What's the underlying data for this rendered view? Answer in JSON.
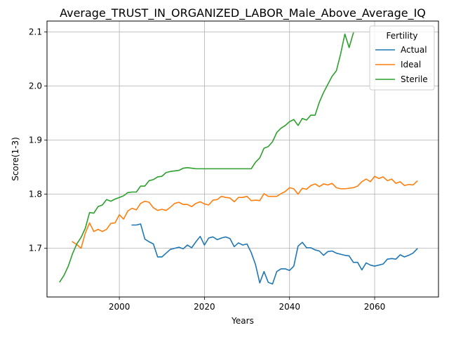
{
  "chart_data": {
    "type": "line",
    "title": "Average_TRUST_IN_ORGANIZED_LABOR_Male_Above_Average_IQ",
    "xlabel": "Years",
    "ylabel": "Score(1-3)",
    "xlim": [
      1983,
      2075
    ],
    "ylim": [
      1.61,
      2.12
    ],
    "xticks": [
      2000,
      2020,
      2040,
      2060
    ],
    "yticks": [
      1.7,
      1.8,
      1.9,
      2.0,
      2.1
    ],
    "grid": true,
    "legend": {
      "title": "Fertility",
      "placement": "top-right"
    },
    "series": [
      {
        "name": "Actual",
        "color": "#1f77b4",
        "x": [
          2003,
          2004,
          2005,
          2006,
          2007,
          2008,
          2009,
          2010,
          2011,
          2012,
          2013,
          2014,
          2015,
          2016,
          2017,
          2018,
          2019,
          2020,
          2021,
          2022,
          2023,
          2024,
          2025,
          2026,
          2027,
          2028,
          2029,
          2030,
          2031,
          2032,
          2033,
          2034,
          2035,
          2036,
          2037,
          2038,
          2039,
          2040,
          2041,
          2042,
          2043,
          2044,
          2045,
          2046,
          2047,
          2048,
          2049,
          2050,
          2051,
          2052,
          2053,
          2054,
          2055,
          2056,
          2057,
          2058,
          2059,
          2060,
          2061,
          2062,
          2063,
          2064,
          2065,
          2066,
          2067,
          2068,
          2069,
          2070
        ],
        "values": [
          1.743,
          1.743,
          1.745,
          1.717,
          1.712,
          1.708,
          1.684,
          1.684,
          1.691,
          1.698,
          1.7,
          1.702,
          1.699,
          1.706,
          1.701,
          1.712,
          1.722,
          1.706,
          1.719,
          1.721,
          1.716,
          1.719,
          1.721,
          1.718,
          1.703,
          1.71,
          1.706,
          1.708,
          1.692,
          1.67,
          1.636,
          1.657,
          1.637,
          1.634,
          1.657,
          1.662,
          1.662,
          1.659,
          1.667,
          1.704,
          1.711,
          1.701,
          1.701,
          1.697,
          1.695,
          1.687,
          1.694,
          1.695,
          1.691,
          1.689,
          1.687,
          1.686,
          1.674,
          1.674,
          1.66,
          1.673,
          1.669,
          1.667,
          1.669,
          1.671,
          1.68,
          1.681,
          1.68,
          1.688,
          1.684,
          1.687,
          1.691,
          1.699
        ]
      },
      {
        "name": "Ideal",
        "color": "#ff7f0e",
        "x": [
          1989,
          1990,
          1991,
          1992,
          1993,
          1994,
          1995,
          1996,
          1997,
          1998,
          1999,
          2000,
          2001,
          2002,
          2003,
          2004,
          2005,
          2006,
          2007,
          2008,
          2009,
          2010,
          2011,
          2012,
          2013,
          2014,
          2015,
          2016,
          2017,
          2018,
          2019,
          2020,
          2021,
          2022,
          2023,
          2024,
          2025,
          2026,
          2027,
          2028,
          2029,
          2030,
          2031,
          2032,
          2033,
          2034,
          2035,
          2036,
          2037,
          2038,
          2039,
          2040,
          2041,
          2042,
          2043,
          2044,
          2045,
          2046,
          2047,
          2048,
          2049,
          2050,
          2051,
          2052,
          2053,
          2054,
          2055,
          2056,
          2057,
          2058,
          2059,
          2060,
          2061,
          2062,
          2063,
          2064,
          2065,
          2066,
          2067,
          2068,
          2069,
          2070
        ],
        "values": [
          1.712,
          1.707,
          1.7,
          1.728,
          1.747,
          1.731,
          1.735,
          1.731,
          1.735,
          1.746,
          1.747,
          1.762,
          1.754,
          1.769,
          1.774,
          1.771,
          1.783,
          1.787,
          1.785,
          1.775,
          1.77,
          1.772,
          1.77,
          1.776,
          1.783,
          1.785,
          1.781,
          1.781,
          1.777,
          1.783,
          1.786,
          1.782,
          1.78,
          1.789,
          1.79,
          1.796,
          1.794,
          1.793,
          1.786,
          1.794,
          1.794,
          1.796,
          1.788,
          1.789,
          1.788,
          1.801,
          1.796,
          1.796,
          1.796,
          1.801,
          1.805,
          1.812,
          1.81,
          1.8,
          1.811,
          1.809,
          1.816,
          1.819,
          1.814,
          1.819,
          1.817,
          1.82,
          1.812,
          1.81,
          1.81,
          1.811,
          1.812,
          1.815,
          1.823,
          1.828,
          1.823,
          1.833,
          1.829,
          1.832,
          1.825,
          1.828,
          1.82,
          1.823,
          1.816,
          1.818,
          1.817,
          1.824
        ]
      },
      {
        "name": "Sterile",
        "color": "#2ca02c",
        "x": [
          1986,
          1987,
          1988,
          1989,
          1990,
          1991,
          1992,
          1993,
          1994,
          1995,
          1996,
          1997,
          1998,
          1999,
          2000,
          2001,
          2002,
          2003,
          2004,
          2005,
          2006,
          2007,
          2008,
          2009,
          2010,
          2011,
          2012,
          2013,
          2014,
          2015,
          2016,
          2017,
          2018,
          2019,
          2020,
          2021,
          2022,
          2023,
          2024,
          2025,
          2026,
          2027,
          2028,
          2029,
          2030,
          2031,
          2032,
          2033,
          2034,
          2035,
          2036,
          2037,
          2038,
          2039,
          2040,
          2041,
          2042,
          2043,
          2044,
          2045,
          2046,
          2047,
          2048,
          2049,
          2050,
          2051,
          2052,
          2053,
          2054,
          2055
        ],
        "values": [
          1.638,
          1.65,
          1.667,
          1.69,
          1.708,
          1.72,
          1.737,
          1.766,
          1.765,
          1.777,
          1.78,
          1.79,
          1.787,
          1.791,
          1.794,
          1.797,
          1.803,
          1.804,
          1.804,
          1.815,
          1.815,
          1.825,
          1.827,
          1.832,
          1.833,
          1.84,
          1.842,
          1.843,
          1.844,
          1.848,
          1.849,
          1.848,
          1.847,
          1.847,
          1.847,
          1.847,
          1.847,
          1.847,
          1.847,
          1.847,
          1.847,
          1.847,
          1.847,
          1.847,
          1.847,
          1.847,
          1.859,
          1.867,
          1.885,
          1.888,
          1.897,
          1.914,
          1.922,
          1.927,
          1.934,
          1.938,
          1.927,
          1.94,
          1.937,
          1.946,
          1.946,
          1.97,
          1.988,
          2.003,
          2.018,
          2.028,
          2.059,
          2.096,
          2.071,
          2.098
        ]
      }
    ]
  }
}
